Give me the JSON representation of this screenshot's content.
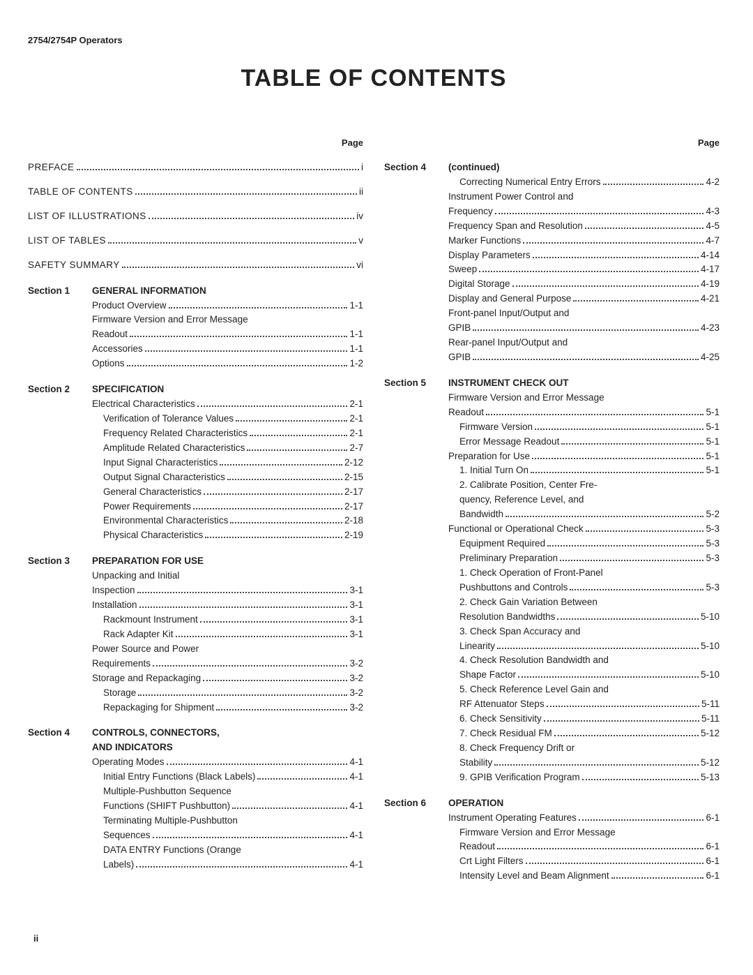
{
  "header": "2754/2754P Operators",
  "title": "TABLE OF CONTENTS",
  "page_label": "Page",
  "footer": "ii",
  "left_column": [
    {
      "kind": "entry",
      "indent": 0,
      "text": "PREFACE",
      "page": "i",
      "spaced": true
    },
    {
      "kind": "gap"
    },
    {
      "kind": "entry",
      "indent": 0,
      "text": "TABLE OF CONTENTS",
      "page": "ii",
      "spaced": true
    },
    {
      "kind": "gap"
    },
    {
      "kind": "entry",
      "indent": 0,
      "text": "LIST OF ILLUSTRATIONS",
      "page": "iv",
      "spaced": true
    },
    {
      "kind": "gap"
    },
    {
      "kind": "entry",
      "indent": 0,
      "text": "LIST OF TABLES",
      "page": "v",
      "spaced": true
    },
    {
      "kind": "gap"
    },
    {
      "kind": "entry",
      "indent": 0,
      "text": "SAFETY SUMMARY",
      "page": "vi",
      "spaced": true
    },
    {
      "kind": "section",
      "num": "Section 1",
      "name": "GENERAL INFORMATION"
    },
    {
      "kind": "entry",
      "indent": 1,
      "text": "Product Overview",
      "page": "1-1"
    },
    {
      "kind": "cont",
      "indent": 1,
      "text": "Firmware Version and Error Message"
    },
    {
      "kind": "entry",
      "indent": 1,
      "text": "Readout",
      "page": "1-1"
    },
    {
      "kind": "entry",
      "indent": 1,
      "text": "Accessories",
      "page": "1-1"
    },
    {
      "kind": "entry",
      "indent": 1,
      "text": "Options",
      "page": "1-2"
    },
    {
      "kind": "section",
      "num": "Section 2",
      "name": "SPECIFICATION"
    },
    {
      "kind": "entry",
      "indent": 1,
      "text": "Electrical Characteristics",
      "page": "2-1"
    },
    {
      "kind": "entry",
      "indent": 2,
      "text": "Verification of Tolerance Values",
      "page": "2-1"
    },
    {
      "kind": "entry",
      "indent": 2,
      "text": "Frequency Related Characteristics",
      "page": "2-1"
    },
    {
      "kind": "entry",
      "indent": 2,
      "text": "Amplitude Related Characteristics",
      "page": "2-7"
    },
    {
      "kind": "entry",
      "indent": 2,
      "text": "Input Signal Characteristics",
      "page": "2-12"
    },
    {
      "kind": "entry",
      "indent": 2,
      "text": "Output Signal Characteristics",
      "page": "2-15"
    },
    {
      "kind": "entry",
      "indent": 2,
      "text": "General Characteristics",
      "page": "2-17"
    },
    {
      "kind": "entry",
      "indent": 2,
      "text": "Power Requirements",
      "page": "2-17"
    },
    {
      "kind": "entry",
      "indent": 2,
      "text": "Environmental Characteristics",
      "page": "2-18"
    },
    {
      "kind": "entry",
      "indent": 2,
      "text": "Physical Characteristics",
      "page": "2-19"
    },
    {
      "kind": "section",
      "num": "Section 3",
      "name": "PREPARATION FOR USE"
    },
    {
      "kind": "cont",
      "indent": 1,
      "text": "Unpacking and Initial"
    },
    {
      "kind": "entry",
      "indent": 1,
      "text": "Inspection",
      "page": "3-1"
    },
    {
      "kind": "entry",
      "indent": 1,
      "text": "Installation",
      "page": "3-1"
    },
    {
      "kind": "entry",
      "indent": 2,
      "text": "Rackmount Instrument",
      "page": "3-1"
    },
    {
      "kind": "entry",
      "indent": 2,
      "text": "Rack Adapter Kit",
      "page": "3-1"
    },
    {
      "kind": "cont",
      "indent": 1,
      "text": "Power Source and Power"
    },
    {
      "kind": "entry",
      "indent": 1,
      "text": "Requirements",
      "page": "3-2"
    },
    {
      "kind": "entry",
      "indent": 1,
      "text": "Storage and Repackaging",
      "page": "3-2"
    },
    {
      "kind": "entry",
      "indent": 2,
      "text": "Storage",
      "page": "3-2"
    },
    {
      "kind": "entry",
      "indent": 2,
      "text": "Repackaging for Shipment",
      "page": "3-2"
    },
    {
      "kind": "section",
      "num": "Section 4",
      "name": "CONTROLS, CONNECTORS,"
    },
    {
      "kind": "cont",
      "indent": 1,
      "text": "AND INDICATORS",
      "bold": true
    },
    {
      "kind": "entry",
      "indent": 1,
      "text": "Operating Modes",
      "page": "4-1"
    },
    {
      "kind": "entry",
      "indent": 2,
      "text": "Initial Entry Functions (Black Labels)",
      "page": "4-1"
    },
    {
      "kind": "cont",
      "indent": 2,
      "text": "Multiple-Pushbutton Sequence"
    },
    {
      "kind": "entry",
      "indent": 2,
      "text": "Functions (SHIFT Pushbutton)",
      "page": "4-1"
    },
    {
      "kind": "cont",
      "indent": 2,
      "text": "Terminating Multiple-Pushbutton"
    },
    {
      "kind": "entry",
      "indent": 2,
      "text": "Sequences",
      "page": "4-1"
    },
    {
      "kind": "cont",
      "indent": 2,
      "text": "DATA ENTRY Functions (Orange"
    },
    {
      "kind": "entry",
      "indent": 2,
      "text": "Labels)",
      "page": "4-1"
    }
  ],
  "right_column": [
    {
      "kind": "section",
      "num": "Section 4",
      "name": "(continued)",
      "namebold": false
    },
    {
      "kind": "entry",
      "indent": 2,
      "text": "Correcting Numerical Entry Errors",
      "page": "4-2"
    },
    {
      "kind": "cont",
      "indent": 1,
      "text": "Instrument Power Control and"
    },
    {
      "kind": "entry",
      "indent": 1,
      "text": "Frequency",
      "page": "4-3"
    },
    {
      "kind": "entry",
      "indent": 1,
      "text": "Frequency Span and Resolution",
      "page": "4-5"
    },
    {
      "kind": "entry",
      "indent": 1,
      "text": "Marker Functions",
      "page": "4-7"
    },
    {
      "kind": "entry",
      "indent": 1,
      "text": "Display Parameters",
      "page": "4-14"
    },
    {
      "kind": "entry",
      "indent": 1,
      "text": "Sweep",
      "page": "4-17"
    },
    {
      "kind": "entry",
      "indent": 1,
      "text": "Digital Storage",
      "page": "4-19"
    },
    {
      "kind": "entry",
      "indent": 1,
      "text": "Display and General Purpose",
      "page": "4-21"
    },
    {
      "kind": "cont",
      "indent": 1,
      "text": "Front-panel Input/Output and"
    },
    {
      "kind": "entry",
      "indent": 1,
      "text": "GPIB",
      "page": "4-23"
    },
    {
      "kind": "cont",
      "indent": 1,
      "text": "Rear-panel Input/Output and"
    },
    {
      "kind": "entry",
      "indent": 1,
      "text": "GPIB",
      "page": "4-25"
    },
    {
      "kind": "section",
      "num": "Section 5",
      "name": "INSTRUMENT CHECK OUT"
    },
    {
      "kind": "cont",
      "indent": 1,
      "text": "Firmware Version and Error Message"
    },
    {
      "kind": "entry",
      "indent": 1,
      "text": "Readout",
      "page": "5-1"
    },
    {
      "kind": "entry",
      "indent": 2,
      "text": "Firmware Version",
      "page": "5-1"
    },
    {
      "kind": "entry",
      "indent": 2,
      "text": "Error Message Readout",
      "page": "5-1"
    },
    {
      "kind": "entry",
      "indent": 1,
      "text": "Preparation for Use",
      "page": "5-1"
    },
    {
      "kind": "entry",
      "indent": 2,
      "text": "1. Initial Turn On",
      "page": "5-1"
    },
    {
      "kind": "cont",
      "indent": 2,
      "text": "2. Calibrate Position, Center Fre-"
    },
    {
      "kind": "cont",
      "indent": 2,
      "text": "quency, Reference Level, and"
    },
    {
      "kind": "entry",
      "indent": 2,
      "text": "Bandwidth",
      "page": "5-2"
    },
    {
      "kind": "entry",
      "indent": 1,
      "text": "Functional or Operational Check",
      "page": "5-3"
    },
    {
      "kind": "entry",
      "indent": 2,
      "text": "Equipment Required",
      "page": "5-3"
    },
    {
      "kind": "entry",
      "indent": 2,
      "text": "Preliminary Preparation",
      "page": "5-3"
    },
    {
      "kind": "cont",
      "indent": 2,
      "text": "1. Check Operation of Front-Panel"
    },
    {
      "kind": "entry",
      "indent": 2,
      "text": "Pushbuttons and Controls",
      "page": "5-3"
    },
    {
      "kind": "cont",
      "indent": 2,
      "text": "2. Check Gain Variation Between"
    },
    {
      "kind": "entry",
      "indent": 2,
      "text": "Resolution Bandwidths",
      "page": "5-10"
    },
    {
      "kind": "cont",
      "indent": 2,
      "text": "3. Check Span Accuracy and"
    },
    {
      "kind": "entry",
      "indent": 2,
      "text": "Linearity",
      "page": "5-10"
    },
    {
      "kind": "cont",
      "indent": 2,
      "text": "4. Check Resolution Bandwidth and"
    },
    {
      "kind": "entry",
      "indent": 2,
      "text": "Shape Factor",
      "page": "5-10"
    },
    {
      "kind": "cont",
      "indent": 2,
      "text": "5. Check Reference Level Gain and"
    },
    {
      "kind": "entry",
      "indent": 2,
      "text": "RF Attenuator Steps",
      "page": "5-11"
    },
    {
      "kind": "entry",
      "indent": 2,
      "text": "6. Check Sensitivity",
      "page": "5-11"
    },
    {
      "kind": "entry",
      "indent": 2,
      "text": "7. Check Residual FM",
      "page": "5-12"
    },
    {
      "kind": "cont",
      "indent": 2,
      "text": "8. Check Frequency Drift or"
    },
    {
      "kind": "entry",
      "indent": 2,
      "text": "Stability",
      "page": "5-12"
    },
    {
      "kind": "entry",
      "indent": 2,
      "text": "9. GPIB Verification Program",
      "page": "5-13"
    },
    {
      "kind": "section",
      "num": "Section 6",
      "name": "OPERATION"
    },
    {
      "kind": "entry",
      "indent": 1,
      "text": "Instrument Operating Features",
      "page": "6-1"
    },
    {
      "kind": "cont",
      "indent": 2,
      "text": "Firmware Version and Error Message"
    },
    {
      "kind": "entry",
      "indent": 2,
      "text": "Readout",
      "page": "6-1"
    },
    {
      "kind": "entry",
      "indent": 2,
      "text": "Crt Light Filters",
      "page": "6-1"
    },
    {
      "kind": "entry",
      "indent": 2,
      "text": "Intensity Level and Beam Alignment",
      "page": "6-1"
    }
  ]
}
